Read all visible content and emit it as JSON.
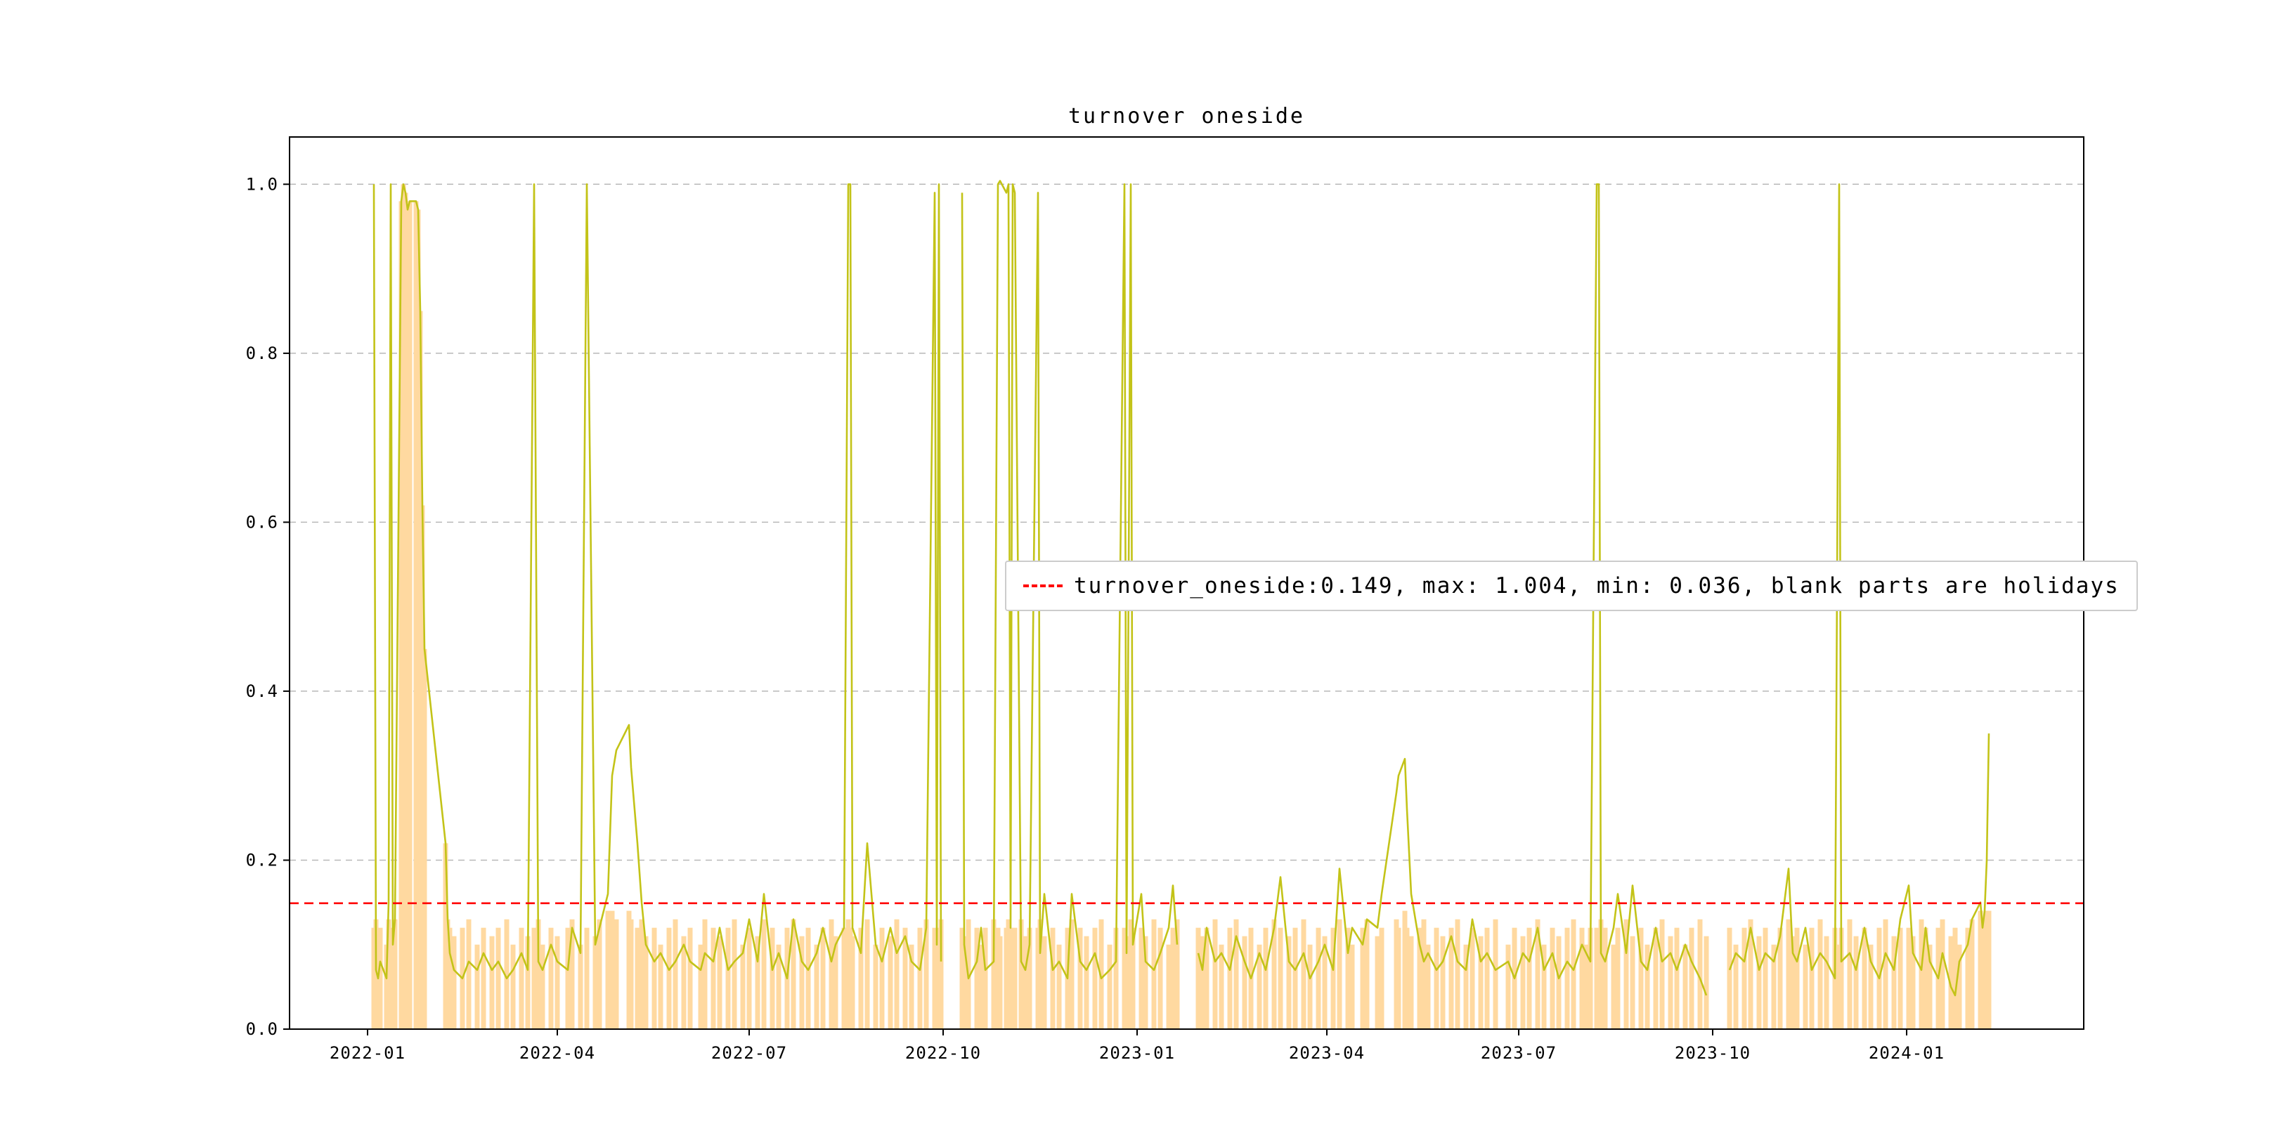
{
  "chart_data": {
    "type": "line",
    "title": "turnover oneside",
    "legend_label": "turnover_oneside:0.149, max: 1.004, min: 0.036, blank parts are holidays",
    "reference_line": 0.149,
    "stats": {
      "current": 0.149,
      "max": 1.004,
      "min": 0.036
    },
    "note": "blank parts are holidays",
    "ylim": [
      0,
      1.056
    ],
    "yticks": [
      0,
      0.2,
      0.4,
      0.6,
      0.8,
      1.0
    ],
    "ytick_labels": [
      "0.0",
      "0.2",
      "0.4",
      "0.6",
      "0.8",
      "1.0"
    ],
    "xticks": [
      "2022-01",
      "2022-04",
      "2022-07",
      "2022-10",
      "2023-01",
      "2023-04",
      "2023-07",
      "2023-10",
      "2024-01"
    ],
    "xlim": [
      "2021-11-25",
      "2024-03-25"
    ],
    "grid": "horizontal-dashed",
    "legend_position": "center-right",
    "colors": {
      "line": "#c3c318",
      "bar": "#ffd9a0",
      "reference": "#ff0000",
      "grid": "#b8b8b8",
      "spine": "#000000"
    },
    "points": [
      [
        "2022-01-04",
        1.0,
        0.12
      ],
      [
        "2022-01-05",
        0.07,
        0.13
      ],
      [
        "2022-01-06",
        0.06,
        0.11
      ],
      [
        "2022-01-07",
        0.08,
        0.12
      ],
      [
        "2022-01-10",
        0.06,
        0.1
      ],
      [
        "2022-01-11",
        0.15,
        0.13
      ],
      [
        "2022-01-12",
        1.0,
        0.12
      ],
      [
        "2022-01-13",
        0.1,
        0.11
      ],
      [
        "2022-01-14",
        0.13,
        0.13
      ],
      [
        "2022-01-17",
        0.98,
        0.98
      ],
      [
        "2022-01-18",
        1.0,
        1.0
      ],
      [
        "2022-01-19",
        0.99,
        0.99
      ],
      [
        "2022-01-20",
        0.97,
        0.97
      ],
      [
        "2022-01-21",
        0.98,
        0.98
      ],
      [
        "2022-01-24",
        0.98,
        0.98
      ],
      [
        "2022-01-25",
        0.97,
        0.97
      ],
      [
        "2022-01-26",
        0.85,
        0.85
      ],
      [
        "2022-01-27",
        0.62,
        0.62
      ],
      [
        "2022-01-28",
        0.45,
        0.45
      ],
      [
        "2022-02-07",
        0.22,
        0.22
      ],
      [
        "2022-02-08",
        0.13,
        0.13
      ],
      [
        "2022-02-09",
        0.09,
        0.12
      ],
      [
        "2022-02-11",
        0.07,
        0.11
      ],
      [
        "2022-02-15",
        0.06,
        0.12
      ],
      [
        "2022-02-18",
        0.08,
        0.13
      ],
      [
        "2022-02-22",
        0.07,
        0.1
      ],
      [
        "2022-02-25",
        0.09,
        0.12
      ],
      [
        "2022-03-01",
        0.07,
        0.11
      ],
      [
        "2022-03-04",
        0.08,
        0.12
      ],
      [
        "2022-03-08",
        0.06,
        0.13
      ],
      [
        "2022-03-11",
        0.07,
        0.1
      ],
      [
        "2022-03-15",
        0.09,
        0.12
      ],
      [
        "2022-03-18",
        0.07,
        0.11
      ],
      [
        "2022-03-21",
        1.0,
        0.12
      ],
      [
        "2022-03-23",
        0.08,
        0.13
      ],
      [
        "2022-03-25",
        0.07,
        0.1
      ],
      [
        "2022-03-29",
        0.1,
        0.12
      ],
      [
        "2022-04-01",
        0.08,
        0.11
      ],
      [
        "2022-04-06",
        0.07,
        0.12
      ],
      [
        "2022-04-08",
        0.12,
        0.13
      ],
      [
        "2022-04-12",
        0.09,
        0.1
      ],
      [
        "2022-04-15",
        1.0,
        0.12
      ],
      [
        "2022-04-19",
        0.1,
        0.11
      ],
      [
        "2022-04-21",
        0.12,
        0.13
      ],
      [
        "2022-04-25",
        0.16,
        0.14
      ],
      [
        "2022-04-27",
        0.3,
        0.14
      ],
      [
        "2022-04-29",
        0.33,
        0.13
      ],
      [
        "2022-05-05",
        0.36,
        0.14
      ],
      [
        "2022-05-06",
        0.31,
        0.13
      ],
      [
        "2022-05-09",
        0.22,
        0.12
      ],
      [
        "2022-05-11",
        0.15,
        0.13
      ],
      [
        "2022-05-13",
        0.1,
        0.11
      ],
      [
        "2022-05-17",
        0.08,
        0.12
      ],
      [
        "2022-05-20",
        0.09,
        0.1
      ],
      [
        "2022-05-24",
        0.07,
        0.12
      ],
      [
        "2022-05-27",
        0.08,
        0.13
      ],
      [
        "2022-05-31",
        0.1,
        0.11
      ],
      [
        "2022-06-03",
        0.08,
        0.12
      ],
      [
        "2022-06-08",
        0.07,
        0.1
      ],
      [
        "2022-06-10",
        0.09,
        0.13
      ],
      [
        "2022-06-14",
        0.08,
        0.12
      ],
      [
        "2022-06-17",
        0.12,
        0.11
      ],
      [
        "2022-06-21",
        0.07,
        0.12
      ],
      [
        "2022-06-24",
        0.08,
        0.13
      ],
      [
        "2022-06-28",
        0.09,
        0.1
      ],
      [
        "2022-07-01",
        0.13,
        0.12
      ],
      [
        "2022-07-05",
        0.08,
        0.11
      ],
      [
        "2022-07-08",
        0.16,
        0.13
      ],
      [
        "2022-07-12",
        0.07,
        0.12
      ],
      [
        "2022-07-15",
        0.09,
        0.1
      ],
      [
        "2022-07-19",
        0.06,
        0.12
      ],
      [
        "2022-07-22",
        0.13,
        0.13
      ],
      [
        "2022-07-26",
        0.08,
        0.11
      ],
      [
        "2022-07-29",
        0.07,
        0.12
      ],
      [
        "2022-08-02",
        0.09,
        0.1
      ],
      [
        "2022-08-05",
        0.12,
        0.12
      ],
      [
        "2022-08-09",
        0.08,
        0.13
      ],
      [
        "2022-08-11",
        0.1,
        0.11
      ],
      [
        "2022-08-15",
        0.12,
        0.12
      ],
      [
        "2022-08-17",
        1.0,
        0.13
      ],
      [
        "2022-08-18",
        1.0,
        0.12
      ],
      [
        "2022-08-19",
        0.12,
        0.11
      ],
      [
        "2022-08-23",
        0.09,
        0.12
      ],
      [
        "2022-08-26",
        0.22,
        0.13
      ],
      [
        "2022-08-30",
        0.1,
        0.1
      ],
      [
        "2022-09-02",
        0.08,
        0.12
      ],
      [
        "2022-09-06",
        0.12,
        0.11
      ],
      [
        "2022-09-09",
        0.09,
        0.13
      ],
      [
        "2022-09-13",
        0.11,
        0.12
      ],
      [
        "2022-09-16",
        0.08,
        0.1
      ],
      [
        "2022-09-20",
        0.07,
        0.12
      ],
      [
        "2022-09-23",
        0.12,
        0.13
      ],
      [
        "2022-09-27",
        0.99,
        0.12
      ],
      [
        "2022-09-28",
        0.1,
        0.11
      ],
      [
        "2022-09-29",
        1.0,
        0.12
      ],
      [
        "2022-09-30",
        0.08,
        0.13
      ],
      [
        "2022-10-04",
        null,
        null
      ],
      [
        "2022-10-10",
        0.99,
        0.12
      ],
      [
        "2022-10-11",
        0.1,
        0.11
      ],
      [
        "2022-10-13",
        0.06,
        0.13
      ],
      [
        "2022-10-17",
        0.08,
        0.12
      ],
      [
        "2022-10-19",
        0.12,
        0.1
      ],
      [
        "2022-10-21",
        0.07,
        0.12
      ],
      [
        "2022-10-25",
        0.08,
        0.13
      ],
      [
        "2022-10-27",
        1.0,
        0.12
      ],
      [
        "2022-10-28",
        1.004,
        0.11
      ],
      [
        "2022-10-31",
        0.99,
        0.12
      ],
      [
        "2022-11-01",
        1.0,
        0.13
      ],
      [
        "2022-11-02",
        0.12,
        0.12
      ],
      [
        "2022-11-03",
        1.0,
        0.1
      ],
      [
        "2022-11-04",
        0.99,
        0.12
      ],
      [
        "2022-11-07",
        0.08,
        0.13
      ],
      [
        "2022-11-09",
        0.07,
        0.11
      ],
      [
        "2022-11-11",
        0.1,
        0.12
      ],
      [
        "2022-11-15",
        0.99,
        0.12
      ],
      [
        "2022-11-16",
        0.09,
        0.13
      ],
      [
        "2022-11-18",
        0.16,
        0.11
      ],
      [
        "2022-11-22",
        0.07,
        0.12
      ],
      [
        "2022-11-25",
        0.08,
        0.1
      ],
      [
        "2022-11-29",
        0.06,
        0.12
      ],
      [
        "2022-12-01",
        0.16,
        0.13
      ],
      [
        "2022-12-05",
        0.08,
        0.12
      ],
      [
        "2022-12-08",
        0.07,
        0.11
      ],
      [
        "2022-12-12",
        0.09,
        0.12
      ],
      [
        "2022-12-15",
        0.06,
        0.13
      ],
      [
        "2022-12-19",
        0.07,
        0.1
      ],
      [
        "2022-12-22",
        0.08,
        0.12
      ],
      [
        "2022-12-26",
        1.0,
        0.12
      ],
      [
        "2022-12-27",
        0.09,
        0.11
      ],
      [
        "2022-12-29",
        1.0,
        0.13
      ],
      [
        "2022-12-30",
        0.1,
        0.12
      ],
      [
        "2023-01-03",
        0.16,
        0.12
      ],
      [
        "2023-01-05",
        0.08,
        0.11
      ],
      [
        "2023-01-09",
        0.07,
        0.13
      ],
      [
        "2023-01-12",
        0.09,
        0.12
      ],
      [
        "2023-01-16",
        0.12,
        0.1
      ],
      [
        "2023-01-18",
        0.17,
        0.12
      ],
      [
        "2023-01-20",
        0.1,
        0.13
      ],
      [
        "2023-01-25",
        null,
        null
      ],
      [
        "2023-01-30",
        0.09,
        0.12
      ],
      [
        "2023-02-01",
        0.07,
        0.11
      ],
      [
        "2023-02-03",
        0.12,
        0.12
      ],
      [
        "2023-02-07",
        0.08,
        0.13
      ],
      [
        "2023-02-10",
        0.09,
        0.1
      ],
      [
        "2023-02-14",
        0.07,
        0.12
      ],
      [
        "2023-02-17",
        0.11,
        0.13
      ],
      [
        "2023-02-21",
        0.08,
        0.11
      ],
      [
        "2023-02-24",
        0.06,
        0.12
      ],
      [
        "2023-02-28",
        0.09,
        0.1
      ],
      [
        "2023-03-03",
        0.07,
        0.12
      ],
      [
        "2023-03-07",
        0.12,
        0.13
      ],
      [
        "2023-03-10",
        0.18,
        0.12
      ],
      [
        "2023-03-14",
        0.08,
        0.11
      ],
      [
        "2023-03-17",
        0.07,
        0.12
      ],
      [
        "2023-03-21",
        0.09,
        0.13
      ],
      [
        "2023-03-24",
        0.06,
        0.1
      ],
      [
        "2023-03-28",
        0.08,
        0.12
      ],
      [
        "2023-03-31",
        0.1,
        0.11
      ],
      [
        "2023-04-04",
        0.07,
        0.12
      ],
      [
        "2023-04-07",
        0.19,
        0.13
      ],
      [
        "2023-04-11",
        0.09,
        0.12
      ],
      [
        "2023-04-13",
        0.12,
        0.1
      ],
      [
        "2023-04-18",
        0.1,
        0.12
      ],
      [
        "2023-04-20",
        0.13,
        0.13
      ],
      [
        "2023-04-25",
        0.12,
        0.11
      ],
      [
        "2023-04-27",
        0.16,
        0.12
      ],
      [
        "2023-05-04",
        0.28,
        0.13
      ],
      [
        "2023-05-05",
        0.3,
        0.12
      ],
      [
        "2023-05-08",
        0.32,
        0.14
      ],
      [
        "2023-05-09",
        0.26,
        0.12
      ],
      [
        "2023-05-11",
        0.16,
        0.11
      ],
      [
        "2023-05-15",
        0.1,
        0.12
      ],
      [
        "2023-05-17",
        0.08,
        0.13
      ],
      [
        "2023-05-19",
        0.09,
        0.1
      ],
      [
        "2023-05-23",
        0.07,
        0.12
      ],
      [
        "2023-05-26",
        0.08,
        0.11
      ],
      [
        "2023-05-30",
        0.11,
        0.12
      ],
      [
        "2023-06-02",
        0.08,
        0.13
      ],
      [
        "2023-06-06",
        0.07,
        0.1
      ],
      [
        "2023-06-09",
        0.13,
        0.12
      ],
      [
        "2023-06-13",
        0.08,
        0.11
      ],
      [
        "2023-06-16",
        0.09,
        0.12
      ],
      [
        "2023-06-20",
        0.07,
        0.13
      ],
      [
        "2023-06-26",
        0.08,
        0.1
      ],
      [
        "2023-06-29",
        0.06,
        0.12
      ],
      [
        "2023-07-03",
        0.09,
        0.11
      ],
      [
        "2023-07-06",
        0.08,
        0.12
      ],
      [
        "2023-07-10",
        0.12,
        0.13
      ],
      [
        "2023-07-13",
        0.07,
        0.1
      ],
      [
        "2023-07-17",
        0.09,
        0.12
      ],
      [
        "2023-07-20",
        0.06,
        0.11
      ],
      [
        "2023-07-24",
        0.08,
        0.12
      ],
      [
        "2023-07-27",
        0.07,
        0.13
      ],
      [
        "2023-07-31",
        0.1,
        0.12
      ],
      [
        "2023-08-02",
        0.09,
        0.1
      ],
      [
        "2023-08-04",
        0.08,
        0.12
      ],
      [
        "2023-08-07",
        1.0,
        0.12
      ],
      [
        "2023-08-08",
        1.0,
        0.11
      ],
      [
        "2023-08-09",
        0.09,
        0.13
      ],
      [
        "2023-08-11",
        0.08,
        0.12
      ],
      [
        "2023-08-15",
        0.12,
        0.1
      ],
      [
        "2023-08-17",
        0.16,
        0.12
      ],
      [
        "2023-08-21",
        0.09,
        0.13
      ],
      [
        "2023-08-24",
        0.17,
        0.11
      ],
      [
        "2023-08-28",
        0.08,
        0.12
      ],
      [
        "2023-08-31",
        0.07,
        0.1
      ],
      [
        "2023-09-04",
        0.12,
        0.12
      ],
      [
        "2023-09-07",
        0.08,
        0.13
      ],
      [
        "2023-09-11",
        0.09,
        0.11
      ],
      [
        "2023-09-14",
        0.07,
        0.12
      ],
      [
        "2023-09-18",
        0.1,
        0.1
      ],
      [
        "2023-09-21",
        0.08,
        0.12
      ],
      [
        "2023-09-25",
        0.06,
        0.13
      ],
      [
        "2023-09-28",
        0.04,
        0.11
      ],
      [
        "2023-10-03",
        null,
        null
      ],
      [
        "2023-10-09",
        0.07,
        0.12
      ],
      [
        "2023-10-12",
        0.09,
        0.1
      ],
      [
        "2023-10-16",
        0.08,
        0.12
      ],
      [
        "2023-10-19",
        0.12,
        0.13
      ],
      [
        "2023-10-23",
        0.07,
        0.11
      ],
      [
        "2023-10-26",
        0.09,
        0.12
      ],
      [
        "2023-10-30",
        0.08,
        0.1
      ],
      [
        "2023-11-02",
        0.11,
        0.12
      ],
      [
        "2023-11-06",
        0.19,
        0.13
      ],
      [
        "2023-11-08",
        0.09,
        0.11
      ],
      [
        "2023-11-10",
        0.08,
        0.12
      ],
      [
        "2023-11-14",
        0.12,
        0.1
      ],
      [
        "2023-11-17",
        0.07,
        0.12
      ],
      [
        "2023-11-21",
        0.09,
        0.13
      ],
      [
        "2023-11-24",
        0.08,
        0.11
      ],
      [
        "2023-11-28",
        0.06,
        0.12
      ],
      [
        "2023-11-30",
        1.0,
        0.1
      ],
      [
        "2023-12-01",
        0.08,
        0.12
      ],
      [
        "2023-12-05",
        0.09,
        0.13
      ],
      [
        "2023-12-08",
        0.07,
        0.11
      ],
      [
        "2023-12-12",
        0.12,
        0.12
      ],
      [
        "2023-12-15",
        0.08,
        0.1
      ],
      [
        "2023-12-19",
        0.06,
        0.12
      ],
      [
        "2023-12-22",
        0.09,
        0.13
      ],
      [
        "2023-12-26",
        0.07,
        0.11
      ],
      [
        "2023-12-29",
        0.13,
        0.12
      ],
      [
        "2024-01-02",
        0.17,
        0.12
      ],
      [
        "2024-01-04",
        0.09,
        0.11
      ],
      [
        "2024-01-08",
        0.07,
        0.13
      ],
      [
        "2024-01-10",
        0.12,
        0.12
      ],
      [
        "2024-01-12",
        0.08,
        0.1
      ],
      [
        "2024-01-16",
        0.06,
        0.12
      ],
      [
        "2024-01-18",
        0.09,
        0.13
      ],
      [
        "2024-01-22",
        0.05,
        0.11
      ],
      [
        "2024-01-24",
        0.04,
        0.12
      ],
      [
        "2024-01-26",
        0.08,
        0.1
      ],
      [
        "2024-01-30",
        0.1,
        0.12
      ],
      [
        "2024-02-01",
        0.13,
        0.13
      ],
      [
        "2024-02-05",
        0.15,
        0.14
      ],
      [
        "2024-02-06",
        0.12,
        0.12
      ],
      [
        "2024-02-07",
        0.14,
        0.13
      ],
      [
        "2024-02-08",
        0.2,
        0.14
      ],
      [
        "2024-02-09",
        0.35,
        0.14
      ]
    ]
  }
}
